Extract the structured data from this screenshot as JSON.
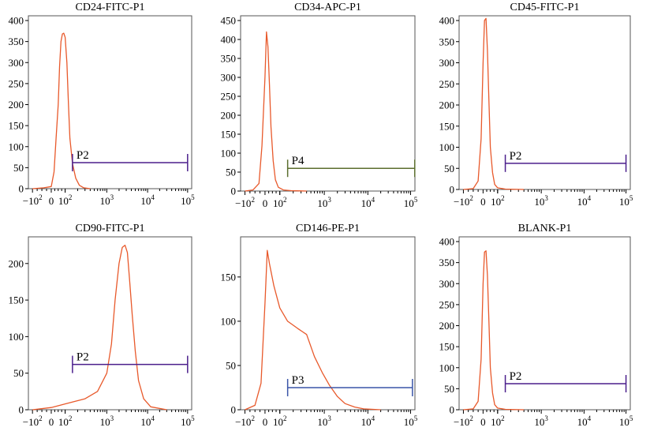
{
  "chart_data": [
    {
      "type": "histogram",
      "title": "CD24-FITC-P1",
      "x_scale": "biexponential",
      "x_ticks": [
        "-10^2",
        "0",
        "10^2",
        "10^3",
        "10^4",
        "10^5"
      ],
      "y_ticks": [
        "0",
        "50",
        "100",
        "150",
        "200",
        "250",
        "300",
        "350",
        "400"
      ],
      "ylim": [
        0,
        400
      ],
      "gate": {
        "label": "P2",
        "x_start": 150,
        "x_end": 100000,
        "y": 62,
        "color": "#4b1f8c"
      },
      "curve_color": "#e8592b",
      "x": [
        -100,
        -40,
        0,
        20,
        35,
        50,
        60,
        70,
        80,
        90,
        100,
        110,
        120,
        130,
        150,
        180,
        220,
        280,
        400
      ],
      "counts": [
        0,
        2,
        5,
        40,
        120,
        200,
        290,
        350,
        368,
        370,
        360,
        300,
        200,
        120,
        60,
        25,
        8,
        2,
        0
      ]
    },
    {
      "type": "histogram",
      "title": "CD34-APC-P1",
      "x_scale": "biexponential",
      "x_ticks": [
        "-10^2",
        "0",
        "10^2",
        "10^3",
        "10^4",
        "10^5"
      ],
      "y_ticks": [
        "0",
        "50",
        "100",
        "150",
        "200",
        "250",
        "300",
        "350",
        "400",
        "450"
      ],
      "ylim": [
        0,
        450
      ],
      "gate": {
        "label": "P4",
        "x_start": 150,
        "x_end": 150000,
        "y": 60,
        "color": "#5b6e2e"
      },
      "curve_color": "#e8592b",
      "x": [
        -100,
        -60,
        -30,
        -15,
        0,
        10,
        20,
        30,
        40,
        55,
        70,
        90,
        120,
        180,
        400
      ],
      "counts": [
        0,
        3,
        20,
        120,
        300,
        420,
        380,
        280,
        170,
        80,
        30,
        10,
        3,
        1,
        0
      ]
    },
    {
      "type": "histogram",
      "title": "CD45-FITC-P1",
      "x_scale": "biexponential",
      "x_ticks": [
        "-10^2",
        "0",
        "10^2",
        "10^3",
        "10^4",
        "10^5"
      ],
      "y_ticks": [
        "0",
        "50",
        "100",
        "150",
        "200",
        "250",
        "300",
        "350",
        "400"
      ],
      "ylim": [
        0,
        400
      ],
      "gate": {
        "label": "P2",
        "x_start": 150,
        "x_end": 100000,
        "y": 62,
        "color": "#4b1f8c"
      },
      "curve_color": "#e8592b",
      "x": [
        -100,
        -50,
        -25,
        -10,
        0,
        10,
        20,
        30,
        40,
        50,
        65,
        80,
        100,
        150,
        400
      ],
      "counts": [
        0,
        2,
        20,
        120,
        300,
        400,
        405,
        330,
        210,
        100,
        40,
        12,
        4,
        1,
        0
      ]
    },
    {
      "type": "histogram",
      "title": "CD90-FITC-P1",
      "x_scale": "biexponential",
      "x_ticks": [
        "-10^2",
        "0",
        "10^2",
        "10^3",
        "10^4",
        "10^5"
      ],
      "y_ticks": [
        "0",
        "50",
        "100",
        "150",
        "200"
      ],
      "ylim": [
        0,
        230
      ],
      "gate": {
        "label": "P2",
        "x_start": 150,
        "x_end": 100000,
        "y": 62,
        "color": "#4b1f8c"
      },
      "curve_color": "#e8592b",
      "x": [
        -100,
        0,
        100,
        300,
        600,
        1000,
        1300,
        1600,
        2000,
        2400,
        2800,
        3200,
        3600,
        4200,
        5000,
        6000,
        8000,
        12000,
        30000
      ],
      "counts": [
        0,
        3,
        8,
        15,
        25,
        50,
        90,
        150,
        200,
        222,
        225,
        215,
        180,
        130,
        80,
        40,
        15,
        4,
        0
      ]
    },
    {
      "type": "histogram",
      "title": "CD146-PE-P1",
      "x_scale": "biexponential",
      "x_ticks": [
        "-10^2",
        "0",
        "10^2",
        "10^3",
        "10^4",
        "10^5"
      ],
      "y_ticks": [
        "0",
        "50",
        "100",
        "150"
      ],
      "ylim": [
        0,
        190
      ],
      "gate": {
        "label": "P3",
        "x_start": 150,
        "x_end": 120000,
        "y": 25,
        "color": "#3a55a8"
      },
      "curve_color": "#e8592b",
      "x": [
        -100,
        -50,
        -20,
        0,
        15,
        30,
        60,
        100,
        150,
        250,
        400,
        600,
        900,
        1300,
        2000,
        3000,
        5000,
        8000,
        20000
      ],
      "counts": [
        0,
        5,
        30,
        120,
        180,
        165,
        140,
        115,
        100,
        92,
        85,
        60,
        42,
        28,
        15,
        7,
        3,
        1,
        0
      ]
    },
    {
      "type": "histogram",
      "title": "BLANK-P1",
      "x_scale": "biexponential",
      "x_ticks": [
        "-10^2",
        "0",
        "10^2",
        "10^3",
        "10^4",
        "10^5"
      ],
      "y_ticks": [
        "0",
        "50",
        "100",
        "150",
        "200",
        "250",
        "300",
        "350",
        "400"
      ],
      "ylim": [
        0,
        400
      ],
      "gate": {
        "label": "P2",
        "x_start": 150,
        "x_end": 100000,
        "y": 62,
        "color": "#4b1f8c"
      },
      "curve_color": "#e8592b",
      "x": [
        -100,
        -50,
        -25,
        -10,
        0,
        10,
        20,
        30,
        40,
        50,
        65,
        80,
        100,
        150,
        400
      ],
      "counts": [
        0,
        2,
        20,
        120,
        300,
        375,
        378,
        320,
        210,
        100,
        40,
        12,
        4,
        1,
        0
      ]
    }
  ]
}
